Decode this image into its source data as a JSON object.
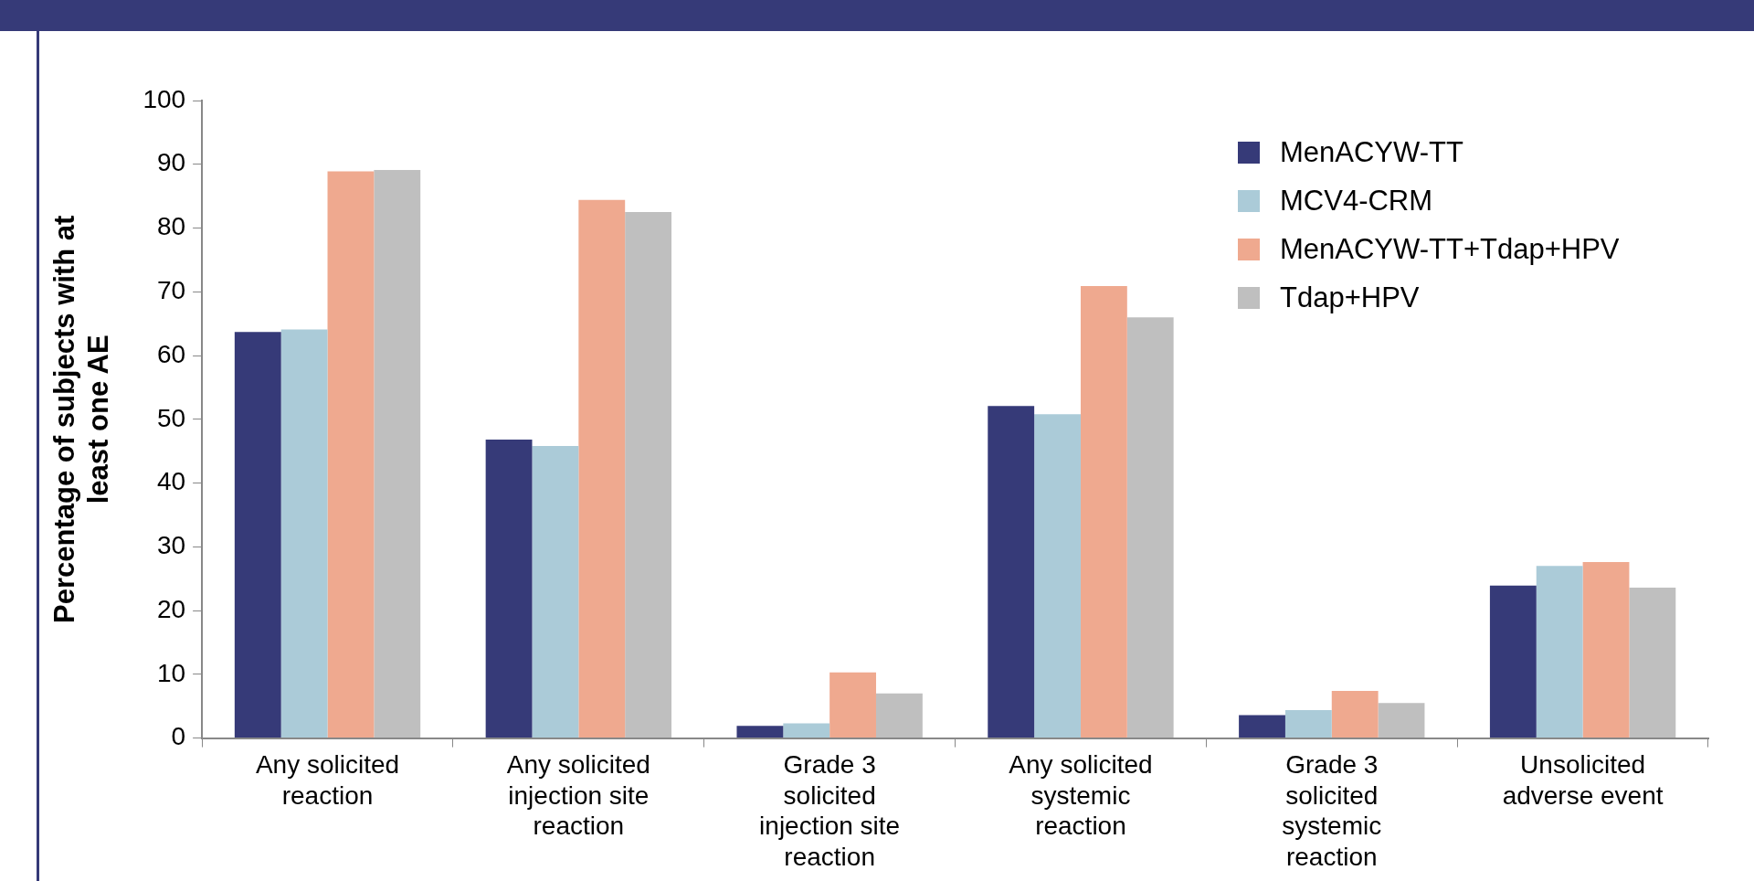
{
  "chart_data": {
    "type": "bar",
    "ylabel": "Percentage of subjects with at least one AE",
    "categories": [
      "Any solicited reaction",
      "Any solicited injection site reaction",
      "Grade 3 solicited injection site reaction",
      "Any solicited systemic reaction",
      "Grade 3 solicited systemic reaction",
      "Unsolicited adverse event"
    ],
    "series": [
      {
        "name": "MenACYW-TT",
        "color": "#363a78",
        "values": [
          63.7,
          46.8,
          1.9,
          52.1,
          3.6,
          23.9
        ]
      },
      {
        "name": "MCV4-CRM",
        "color": "#abcbd8",
        "values": [
          64.1,
          45.8,
          2.3,
          50.8,
          4.4,
          27.0
        ]
      },
      {
        "name": "MenACYW-TT+Tdap+HPV",
        "color": "#efa98f",
        "values": [
          88.9,
          84.4,
          10.3,
          70.9,
          7.4,
          27.6
        ]
      },
      {
        "name": "Tdap+HPV",
        "color": "#bfbfbf",
        "values": [
          89.1,
          82.5,
          7.0,
          66.0,
          5.5,
          23.6
        ]
      }
    ],
    "ylim": [
      0,
      100
    ],
    "yticks": [
      0,
      10,
      20,
      30,
      40,
      50,
      60,
      70,
      80,
      90,
      100
    ],
    "grid": false,
    "legend": "top right"
  }
}
